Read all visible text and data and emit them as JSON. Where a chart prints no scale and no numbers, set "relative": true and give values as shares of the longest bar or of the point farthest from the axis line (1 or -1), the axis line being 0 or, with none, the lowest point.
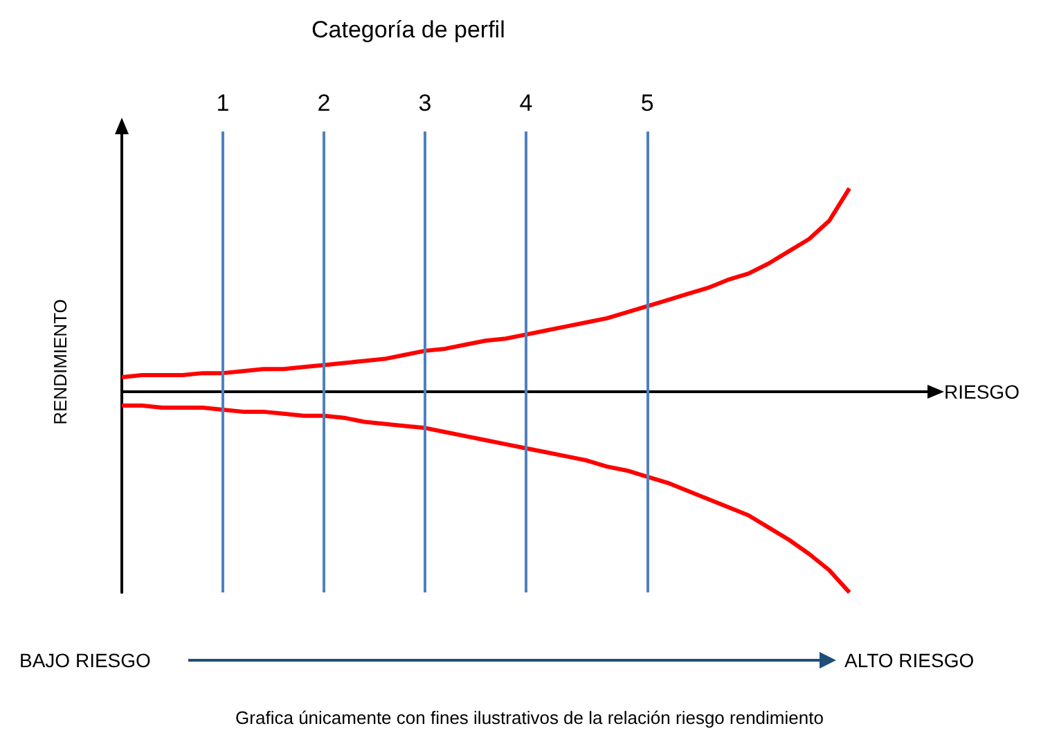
{
  "chart_data": {
    "type": "line",
    "title": "Categoría de perfil",
    "xlabel": "RIESGO",
    "ylabel": "RENDIMIENTO",
    "relative": true,
    "marker": "none",
    "grid": false,
    "categories": [
      null,
      null,
      null,
      null,
      null,
      "1",
      null,
      null,
      null,
      null,
      "2",
      null,
      null,
      null,
      null,
      "3",
      null,
      null,
      null,
      null,
      "4",
      null,
      null,
      null,
      null,
      null,
      "5",
      null,
      null,
      null,
      null,
      null,
      null,
      null,
      null,
      null,
      null,
      null,
      null,
      null,
      null
    ],
    "series": [
      {
        "color": "#ff0000",
        "values": [
          0.07,
          0.08,
          0.08,
          0.08,
          0.09,
          0.09,
          0.1,
          0.11,
          0.11,
          0.12,
          0.13,
          0.14,
          0.15,
          0.16,
          0.18,
          0.2,
          0.21,
          0.23,
          0.25,
          0.26,
          0.28,
          0.3,
          0.32,
          0.34,
          0.36,
          0.39,
          0.42,
          0.45,
          0.48,
          0.51,
          0.55,
          0.58,
          0.63,
          0.69,
          0.75,
          0.84,
          1,
          null,
          null,
          null,
          null
        ]
      },
      {
        "color": "#ff0000",
        "values": [
          -0.07,
          -0.07,
          -0.08,
          -0.08,
          -0.08,
          -0.09,
          -0.1,
          -0.1,
          -0.11,
          -0.12,
          -0.12,
          -0.13,
          -0.15,
          -0.16,
          -0.17,
          -0.18,
          -0.2,
          -0.22,
          -0.24,
          -0.26,
          -0.28,
          -0.3,
          -0.32,
          -0.34,
          -0.37,
          -0.39,
          -0.42,
          -0.45,
          -0.49,
          -0.53,
          -0.57,
          -0.61,
          -0.67,
          -0.73,
          -0.8,
          -0.88,
          -0.99,
          null,
          null,
          null,
          null
        ]
      }
    ],
    "ref_lines": [
      {
        "axis": "x",
        "value": "1",
        "color": "#4f81bd"
      },
      {
        "axis": "x",
        "value": "2",
        "color": "#4f81bd"
      },
      {
        "axis": "x",
        "value": "3",
        "color": "#4f81bd"
      },
      {
        "axis": "x",
        "value": "4",
        "color": "#4f81bd"
      },
      {
        "axis": "x",
        "value": "5",
        "color": "#4f81bd"
      }
    ],
    "annotations": [
      "BAJO RIESGO",
      "ALTO RIESGO",
      "Grafica únicamente con fines ilustrativos de la relación riesgo rendimiento"
    ]
  }
}
